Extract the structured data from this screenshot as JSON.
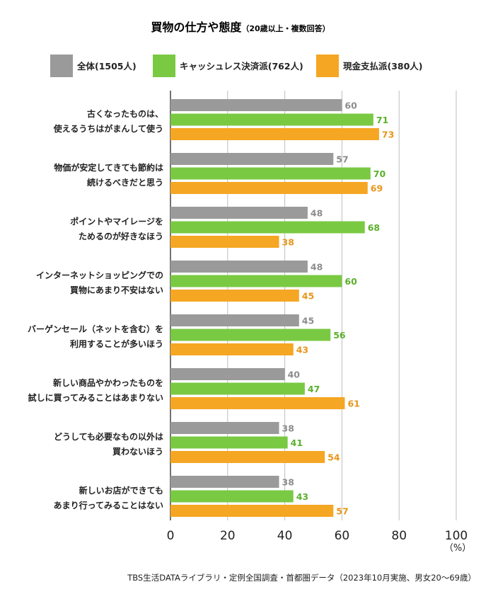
{
  "chart_data": {
    "type": "bar",
    "orientation": "horizontal",
    "title": "買物の仕方や態度",
    "subtitle": "（20歳以上・複数回答）",
    "categories": [
      [
        "古くなったものは、",
        "使えるうちはがまんして使う"
      ],
      [
        "物価が安定してきても節約は",
        "続けるべきだと思う"
      ],
      [
        "ポイントやマイレージを",
        "ためるのが好きなほう"
      ],
      [
        "インターネットショッピングでの",
        "買物にあまり不安はない"
      ],
      [
        "バーゲンセール（ネットを含む）を",
        "利用することが多いほう"
      ],
      [
        "新しい商品やかわったものを",
        "試しに買ってみることはあまりない"
      ],
      [
        "どうしても必要なもの以外は",
        "買わないほう"
      ],
      [
        "新しいお店ができても",
        "あまり行ってみることはない"
      ]
    ],
    "series": [
      {
        "name": "全体(1505人)",
        "color": "#9a9a9a",
        "label_color": "#8c8c8c",
        "values": [
          60,
          57,
          48,
          48,
          45,
          40,
          38,
          38
        ]
      },
      {
        "name": "キャッシュレス決済派(762人)",
        "color": "#7ac943",
        "label_color": "#5bb02c",
        "values": [
          71,
          70,
          68,
          60,
          56,
          47,
          41,
          43
        ]
      },
      {
        "name": "現金支払派(380人)",
        "color": "#f5a623",
        "label_color": "#e8961a",
        "values": [
          73,
          69,
          38,
          45,
          43,
          61,
          54,
          57
        ]
      }
    ],
    "xlim": [
      0,
      100
    ],
    "xticks": [
      "0",
      "20",
      "40",
      "60",
      "80",
      "100"
    ],
    "unit": "（%）",
    "grid": true,
    "legend": "top",
    "source": "TBS生活DATAライブラリ・定例全国調査・首都圏データ（2023年10月実施、男女20〜69歳）"
  }
}
